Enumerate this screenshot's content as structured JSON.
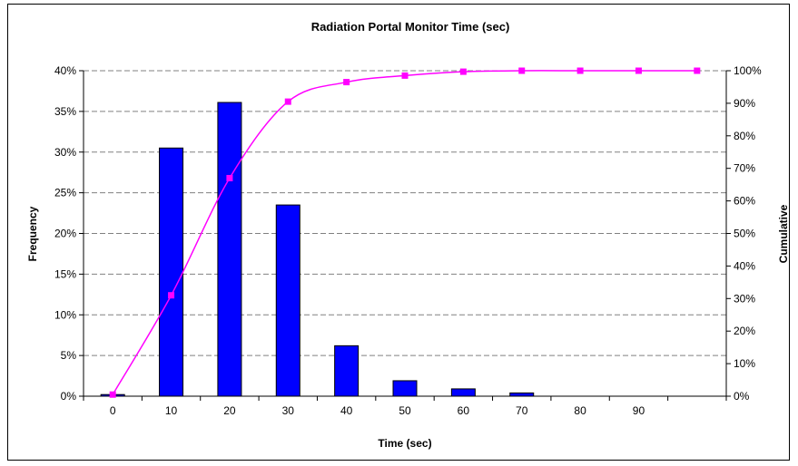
{
  "chart_data": {
    "type": "bar",
    "title": "Radiation Portal Monitor Time (sec)",
    "xlabel": "Time (sec)",
    "ylabel": "Frequency",
    "y2label": "Cumulative",
    "categories": [
      "0",
      "10",
      "20",
      "30",
      "40",
      "50",
      "60",
      "70",
      "80",
      "90",
      ""
    ],
    "ylim": [
      0,
      0.4
    ],
    "y2lim": [
      0,
      1.0
    ],
    "y_ticks": [
      "0%",
      "5%",
      "10%",
      "15%",
      "20%",
      "25%",
      "30%",
      "35%",
      "40%"
    ],
    "y2_ticks": [
      "0%",
      "10%",
      "20%",
      "30%",
      "40%",
      "50%",
      "60%",
      "70%",
      "80%",
      "90%",
      "100%"
    ],
    "grid": true,
    "series": [
      {
        "type": "bar",
        "color": "#0000FF",
        "values": [
          0.002,
          0.305,
          0.361,
          0.235,
          0.062,
          0.019,
          0.009,
          0.004,
          0.0,
          0.0,
          0.0
        ]
      },
      {
        "type": "line",
        "axis": "right",
        "color": "#FF00FF",
        "values": [
          0.005,
          0.31,
          0.67,
          0.905,
          0.965,
          0.985,
          0.997,
          1.0,
          1.0,
          1.0,
          1.0
        ]
      }
    ]
  }
}
